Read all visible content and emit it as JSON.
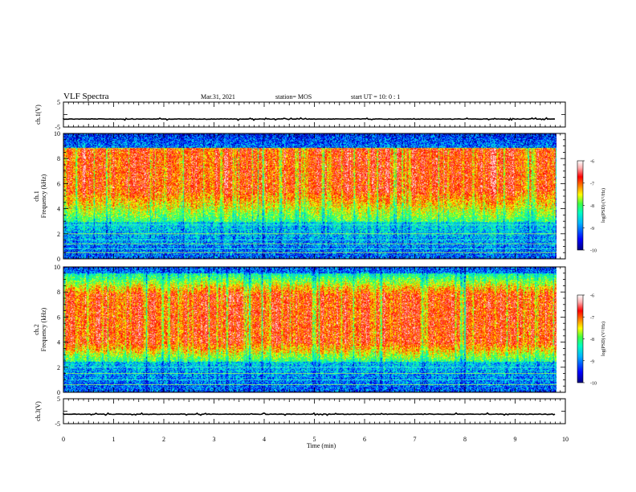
{
  "header": {
    "title": "VLF Spectra",
    "date": "Mar.31, 2021",
    "station": "station= MOS",
    "start": "start  UT =   10: 0  : 1"
  },
  "colors": {
    "scale": [
      "#000080",
      "#0000ff",
      "#00b4ff",
      "#00ffc0",
      "#40ff40",
      "#ffff00",
      "#ff8000",
      "#ff0000",
      "#ffb0b0",
      "#ffffff"
    ]
  },
  "chart_data": [
    {
      "type": "line",
      "name": "ch1-waveform",
      "ylabel": "ch.1(V)",
      "ylim": [
        -5,
        5
      ],
      "yticks": [
        "5",
        "-5"
      ],
      "level": -1.8,
      "xlim": [
        0,
        10
      ]
    },
    {
      "type": "heatmap",
      "name": "ch1-spectrogram",
      "ylabel_top": "ch.1",
      "ylabel": "Frequency (kHz)",
      "ylim": [
        0,
        10
      ],
      "yticks": [
        "0",
        "2",
        "4",
        "6",
        "8",
        "10"
      ],
      "xlim": [
        0,
        10
      ],
      "data_end_min": 9.83,
      "band": {
        "low_khz": 3.0,
        "high_khz": 8.9,
        "peak_low_khz": 5.5,
        "peak_high_khz": 8.8
      },
      "lines_khz": [
        0.5,
        0.8,
        1.2,
        1.5,
        2.0,
        2.7
      ],
      "colorbar": {
        "label": "log(PSD) (V²/Hz)",
        "ticks": [
          "-6",
          "-7",
          "-8",
          "-9",
          "-10"
        ],
        "range": [
          -10,
          -6
        ]
      }
    },
    {
      "type": "heatmap",
      "name": "ch2-spectrogram",
      "ylabel_top": "ch.2",
      "ylabel": "Frequency (kHz)",
      "ylim": [
        0,
        10
      ],
      "yticks": [
        "0",
        "2",
        "4",
        "6",
        "8",
        "10"
      ],
      "xlim": [
        0,
        10
      ],
      "data_end_min": 9.83,
      "band": {
        "low_khz": 2.5,
        "high_khz": 9.5,
        "peak_low_khz": 4.0,
        "peak_high_khz": 7.8
      },
      "lines_khz": [
        0.6,
        1.0,
        1.5,
        2.0
      ],
      "colorbar": {
        "label": "log(PSD) (V²/Hz)",
        "ticks": [
          "-6",
          "-7",
          "-8",
          "-9",
          "-10"
        ],
        "range": [
          -10,
          -6
        ]
      }
    },
    {
      "type": "line",
      "name": "ch3-waveform",
      "ylabel": "ch.3(V)",
      "ylim": [
        -5,
        5
      ],
      "yticks": [
        "5",
        "-5"
      ],
      "level": -1.2,
      "xlim": [
        0,
        10
      ]
    }
  ],
  "xaxis": {
    "label": "Time  (min)",
    "ticks": [
      "0",
      "1",
      "2",
      "3",
      "4",
      "5",
      "6",
      "7",
      "8",
      "9",
      "10"
    ]
  }
}
